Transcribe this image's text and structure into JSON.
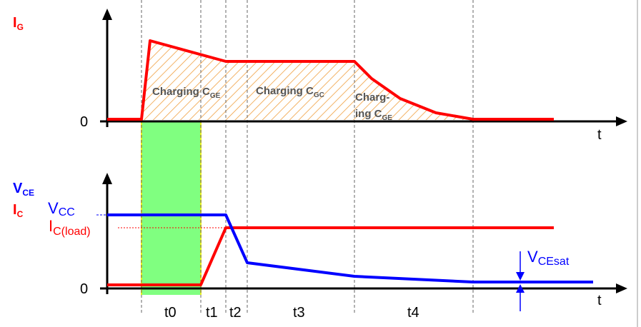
{
  "top_chart": {
    "y_label_main": "I",
    "y_label_sub": "G",
    "zero_label": "0",
    "x_axis_label": "t",
    "region_labels": {
      "charging_cge_main": "Charging C",
      "charging_cge_sub": "GE",
      "charging_cgc_main": "Charging C",
      "charging_cgc_sub": "GC",
      "charg_line1": "Charg-",
      "charg_line2_main": "ing C",
      "charg_line2_sub": "GE"
    }
  },
  "bottom_chart": {
    "vce_label_main": "V",
    "vce_label_sub": "CE",
    "ic_label_main": "I",
    "ic_label_sub": "C",
    "vcc_label_main": "V",
    "vcc_label_sub": "CC",
    "icload_label_main": "I",
    "icload_label_sub": "C(load)",
    "zero_label": "0",
    "x_axis_label": "t",
    "vcesat_label_main": "V",
    "vcesat_label_sub": "CEsat"
  },
  "time_intervals": [
    "t0",
    "t1",
    "t2",
    "t3",
    "t4"
  ],
  "colors": {
    "ig_curve": "#ff0000",
    "ic_curve": "#ff0000",
    "vce_curve": "#0000ff",
    "vcc_label": "#0000ff",
    "hatch": "#f0a040",
    "highlight": "#80ff80",
    "highlight_edge": "#e8f020",
    "axis": "#000000"
  }
}
